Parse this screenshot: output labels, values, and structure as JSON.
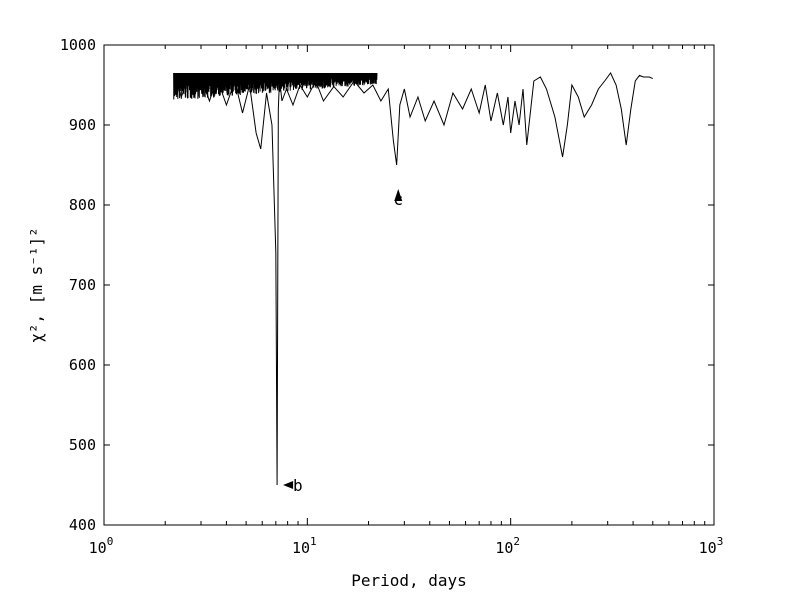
{
  "chart_data": {
    "type": "line",
    "title": "",
    "xlabel": "Period, days",
    "ylabel": "χ², [m s⁻¹]²",
    "x_scale": "log",
    "xlim": [
      1,
      1000
    ],
    "ylim": [
      400,
      1000
    ],
    "x_ticks": [
      {
        "value": 1,
        "base": "10",
        "exp": "0"
      },
      {
        "value": 10,
        "base": "10",
        "exp": "1"
      },
      {
        "value": 100,
        "base": "10",
        "exp": "2"
      },
      {
        "value": 1000,
        "base": "10",
        "exp": "3"
      }
    ],
    "y_ticks": [
      400,
      500,
      600,
      700,
      800,
      900,
      1000
    ],
    "grid": false,
    "legend": "none",
    "series": [
      {
        "x": [
          2.2,
          2.4,
          2.6,
          2.8,
          3.0,
          3.3,
          3.6,
          4.0,
          4.4,
          4.8,
          5.2,
          5.6,
          5.9,
          6.3,
          6.7,
          7.0,
          7.1,
          7.2,
          7.3,
          7.5,
          7.9,
          8.5,
          9.2,
          10,
          11,
          12,
          13.5,
          15,
          17,
          19,
          21,
          23,
          25,
          26.5,
          27.5,
          28.5,
          30,
          32,
          35,
          38,
          42,
          47,
          52,
          58,
          64,
          70,
          75,
          80,
          86,
          92,
          97,
          100,
          105,
          110,
          115,
          120,
          130,
          140,
          150,
          165,
          180,
          190,
          200,
          215,
          230,
          250,
          270,
          290,
          310,
          330,
          350,
          370,
          390,
          410,
          430,
          450,
          480,
          500
        ],
        "y": [
          965,
          935,
          960,
          940,
          962,
          930,
          958,
          925,
          955,
          915,
          950,
          890,
          870,
          940,
          900,
          740,
          450,
          920,
          958,
          930,
          945,
          925,
          950,
          935,
          955,
          930,
          948,
          935,
          955,
          940,
          950,
          930,
          945,
          880,
          850,
          925,
          945,
          910,
          935,
          905,
          930,
          900,
          940,
          920,
          945,
          915,
          950,
          905,
          940,
          900,
          935,
          890,
          930,
          900,
          945,
          875,
          955,
          960,
          945,
          910,
          860,
          900,
          950,
          935,
          910,
          925,
          945,
          955,
          965,
          950,
          920,
          875,
          920,
          955,
          962,
          960,
          960,
          958
        ]
      }
    ],
    "noise_band": {
      "x_from": 2.2,
      "x_to": 22,
      "top": 965,
      "low": 930
    },
    "annotations": [
      {
        "text": "b",
        "x": 8.5,
        "y": 450,
        "arrow_to": [
          7.6,
          450
        ],
        "direction": "left"
      },
      {
        "text": "c",
        "x": 28,
        "y": 800,
        "arrow_to": [
          28,
          820
        ],
        "direction": "up"
      }
    ]
  }
}
